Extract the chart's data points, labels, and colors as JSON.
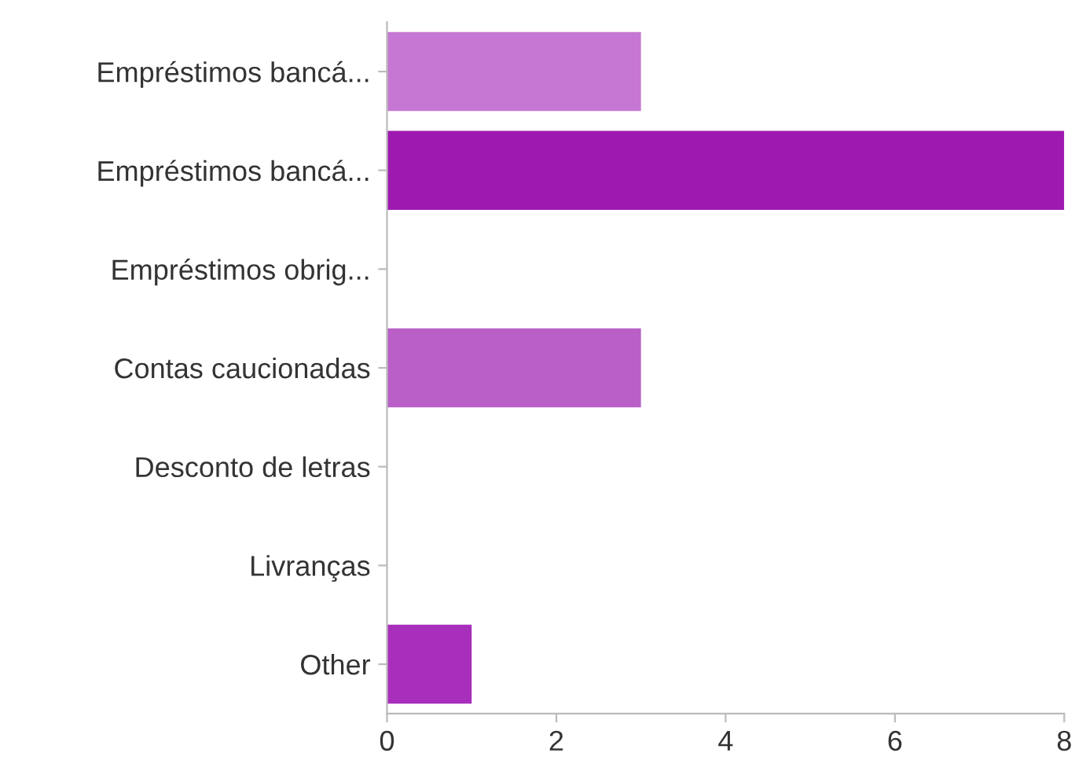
{
  "chart_data": {
    "type": "bar",
    "orientation": "horizontal",
    "categories": [
      "Empréstimos bancá...",
      "Empréstimos bancá...",
      "Empréstimos obrig...",
      "Contas caucionadas",
      "Desconto de letras",
      "Livranças",
      "Other"
    ],
    "values": [
      3,
      8,
      0,
      3,
      0,
      0,
      1
    ],
    "colors": [
      "#c677d3",
      "#9e19b0",
      "#b04cc2",
      "#b95fc7",
      "#a83ebb",
      "#b656c4",
      "#a82fbb"
    ],
    "xlim": [
      0,
      8
    ],
    "xticks": [
      0,
      2,
      4,
      6,
      8
    ],
    "grid": false,
    "legend": false
  }
}
